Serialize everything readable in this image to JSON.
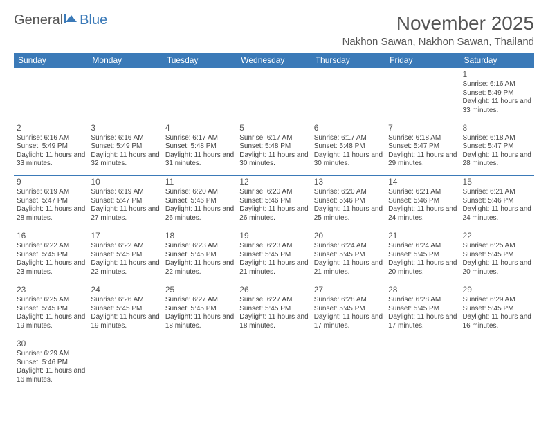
{
  "logo": {
    "text1": "General",
    "text2": "Blue"
  },
  "title": "November 2025",
  "location": "Nakhon Sawan, Nakhon Sawan, Thailand",
  "colors": {
    "header_bg": "#3b7ab8",
    "header_text": "#ffffff",
    "border": "#3b7ab8",
    "body_text": "#444444",
    "title_text": "#555555",
    "background": "#ffffff"
  },
  "day_headers": [
    "Sunday",
    "Monday",
    "Tuesday",
    "Wednesday",
    "Thursday",
    "Friday",
    "Saturday"
  ],
  "weeks": [
    [
      null,
      null,
      null,
      null,
      null,
      null,
      {
        "n": "1",
        "sunrise": "Sunrise: 6:16 AM",
        "sunset": "Sunset: 5:49 PM",
        "daylight": "Daylight: 11 hours and 33 minutes."
      }
    ],
    [
      {
        "n": "2",
        "sunrise": "Sunrise: 6:16 AM",
        "sunset": "Sunset: 5:49 PM",
        "daylight": "Daylight: 11 hours and 33 minutes."
      },
      {
        "n": "3",
        "sunrise": "Sunrise: 6:16 AM",
        "sunset": "Sunset: 5:49 PM",
        "daylight": "Daylight: 11 hours and 32 minutes."
      },
      {
        "n": "4",
        "sunrise": "Sunrise: 6:17 AM",
        "sunset": "Sunset: 5:48 PM",
        "daylight": "Daylight: 11 hours and 31 minutes."
      },
      {
        "n": "5",
        "sunrise": "Sunrise: 6:17 AM",
        "sunset": "Sunset: 5:48 PM",
        "daylight": "Daylight: 11 hours and 30 minutes."
      },
      {
        "n": "6",
        "sunrise": "Sunrise: 6:17 AM",
        "sunset": "Sunset: 5:48 PM",
        "daylight": "Daylight: 11 hours and 30 minutes."
      },
      {
        "n": "7",
        "sunrise": "Sunrise: 6:18 AM",
        "sunset": "Sunset: 5:47 PM",
        "daylight": "Daylight: 11 hours and 29 minutes."
      },
      {
        "n": "8",
        "sunrise": "Sunrise: 6:18 AM",
        "sunset": "Sunset: 5:47 PM",
        "daylight": "Daylight: 11 hours and 28 minutes."
      }
    ],
    [
      {
        "n": "9",
        "sunrise": "Sunrise: 6:19 AM",
        "sunset": "Sunset: 5:47 PM",
        "daylight": "Daylight: 11 hours and 28 minutes."
      },
      {
        "n": "10",
        "sunrise": "Sunrise: 6:19 AM",
        "sunset": "Sunset: 5:47 PM",
        "daylight": "Daylight: 11 hours and 27 minutes."
      },
      {
        "n": "11",
        "sunrise": "Sunrise: 6:20 AM",
        "sunset": "Sunset: 5:46 PM",
        "daylight": "Daylight: 11 hours and 26 minutes."
      },
      {
        "n": "12",
        "sunrise": "Sunrise: 6:20 AM",
        "sunset": "Sunset: 5:46 PM",
        "daylight": "Daylight: 11 hours and 26 minutes."
      },
      {
        "n": "13",
        "sunrise": "Sunrise: 6:20 AM",
        "sunset": "Sunset: 5:46 PM",
        "daylight": "Daylight: 11 hours and 25 minutes."
      },
      {
        "n": "14",
        "sunrise": "Sunrise: 6:21 AM",
        "sunset": "Sunset: 5:46 PM",
        "daylight": "Daylight: 11 hours and 24 minutes."
      },
      {
        "n": "15",
        "sunrise": "Sunrise: 6:21 AM",
        "sunset": "Sunset: 5:46 PM",
        "daylight": "Daylight: 11 hours and 24 minutes."
      }
    ],
    [
      {
        "n": "16",
        "sunrise": "Sunrise: 6:22 AM",
        "sunset": "Sunset: 5:45 PM",
        "daylight": "Daylight: 11 hours and 23 minutes."
      },
      {
        "n": "17",
        "sunrise": "Sunrise: 6:22 AM",
        "sunset": "Sunset: 5:45 PM",
        "daylight": "Daylight: 11 hours and 22 minutes."
      },
      {
        "n": "18",
        "sunrise": "Sunrise: 6:23 AM",
        "sunset": "Sunset: 5:45 PM",
        "daylight": "Daylight: 11 hours and 22 minutes."
      },
      {
        "n": "19",
        "sunrise": "Sunrise: 6:23 AM",
        "sunset": "Sunset: 5:45 PM",
        "daylight": "Daylight: 11 hours and 21 minutes."
      },
      {
        "n": "20",
        "sunrise": "Sunrise: 6:24 AM",
        "sunset": "Sunset: 5:45 PM",
        "daylight": "Daylight: 11 hours and 21 minutes."
      },
      {
        "n": "21",
        "sunrise": "Sunrise: 6:24 AM",
        "sunset": "Sunset: 5:45 PM",
        "daylight": "Daylight: 11 hours and 20 minutes."
      },
      {
        "n": "22",
        "sunrise": "Sunrise: 6:25 AM",
        "sunset": "Sunset: 5:45 PM",
        "daylight": "Daylight: 11 hours and 20 minutes."
      }
    ],
    [
      {
        "n": "23",
        "sunrise": "Sunrise: 6:25 AM",
        "sunset": "Sunset: 5:45 PM",
        "daylight": "Daylight: 11 hours and 19 minutes."
      },
      {
        "n": "24",
        "sunrise": "Sunrise: 6:26 AM",
        "sunset": "Sunset: 5:45 PM",
        "daylight": "Daylight: 11 hours and 19 minutes."
      },
      {
        "n": "25",
        "sunrise": "Sunrise: 6:27 AM",
        "sunset": "Sunset: 5:45 PM",
        "daylight": "Daylight: 11 hours and 18 minutes."
      },
      {
        "n": "26",
        "sunrise": "Sunrise: 6:27 AM",
        "sunset": "Sunset: 5:45 PM",
        "daylight": "Daylight: 11 hours and 18 minutes."
      },
      {
        "n": "27",
        "sunrise": "Sunrise: 6:28 AM",
        "sunset": "Sunset: 5:45 PM",
        "daylight": "Daylight: 11 hours and 17 minutes."
      },
      {
        "n": "28",
        "sunrise": "Sunrise: 6:28 AM",
        "sunset": "Sunset: 5:45 PM",
        "daylight": "Daylight: 11 hours and 17 minutes."
      },
      {
        "n": "29",
        "sunrise": "Sunrise: 6:29 AM",
        "sunset": "Sunset: 5:45 PM",
        "daylight": "Daylight: 11 hours and 16 minutes."
      }
    ],
    [
      {
        "n": "30",
        "sunrise": "Sunrise: 6:29 AM",
        "sunset": "Sunset: 5:46 PM",
        "daylight": "Daylight: 11 hours and 16 minutes."
      },
      null,
      null,
      null,
      null,
      null,
      null
    ]
  ]
}
